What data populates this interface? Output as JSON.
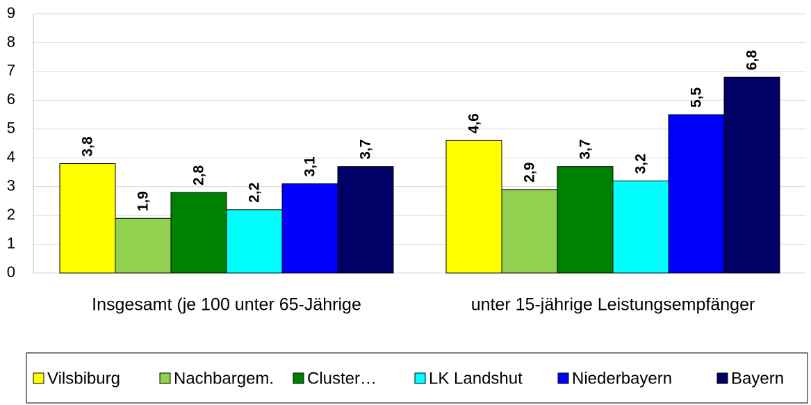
{
  "chart_data": {
    "type": "bar",
    "categories": [
      "Insgesamt (je 100 unter 65-Jährige",
      "unter 15-jährige Leistungsempfänger"
    ],
    "series": [
      {
        "name": "Vilsbiburg",
        "color": "#ffff00",
        "values": [
          3.8,
          4.6
        ],
        "value_labels": [
          "3,8",
          "4,6"
        ]
      },
      {
        "name": "Nachbargem.",
        "color": "#92d050",
        "values": [
          1.9,
          2.9
        ],
        "value_labels": [
          "1,9",
          "2,9"
        ]
      },
      {
        "name": "Cluster…",
        "color": "#008000",
        "values": [
          2.8,
          3.7
        ],
        "value_labels": [
          "2,8",
          "3,7"
        ]
      },
      {
        "name": "LK Landshut",
        "color": "#00ffff",
        "values": [
          2.2,
          3.2
        ],
        "value_labels": [
          "2,2",
          "3,2"
        ]
      },
      {
        "name": "Niederbayern",
        "color": "#0000ff",
        "values": [
          3.1,
          5.5
        ],
        "value_labels": [
          "3,1",
          "5,5"
        ]
      },
      {
        "name": "Bayern",
        "color": "#000066",
        "values": [
          3.7,
          6.8
        ],
        "value_labels": [
          "3,7",
          "6,8"
        ]
      }
    ],
    "ylim": [
      0,
      9
    ],
    "yticks": [
      0,
      1,
      2,
      3,
      4,
      5,
      6,
      7,
      8,
      9
    ],
    "grid": true,
    "legend": "bottom"
  }
}
